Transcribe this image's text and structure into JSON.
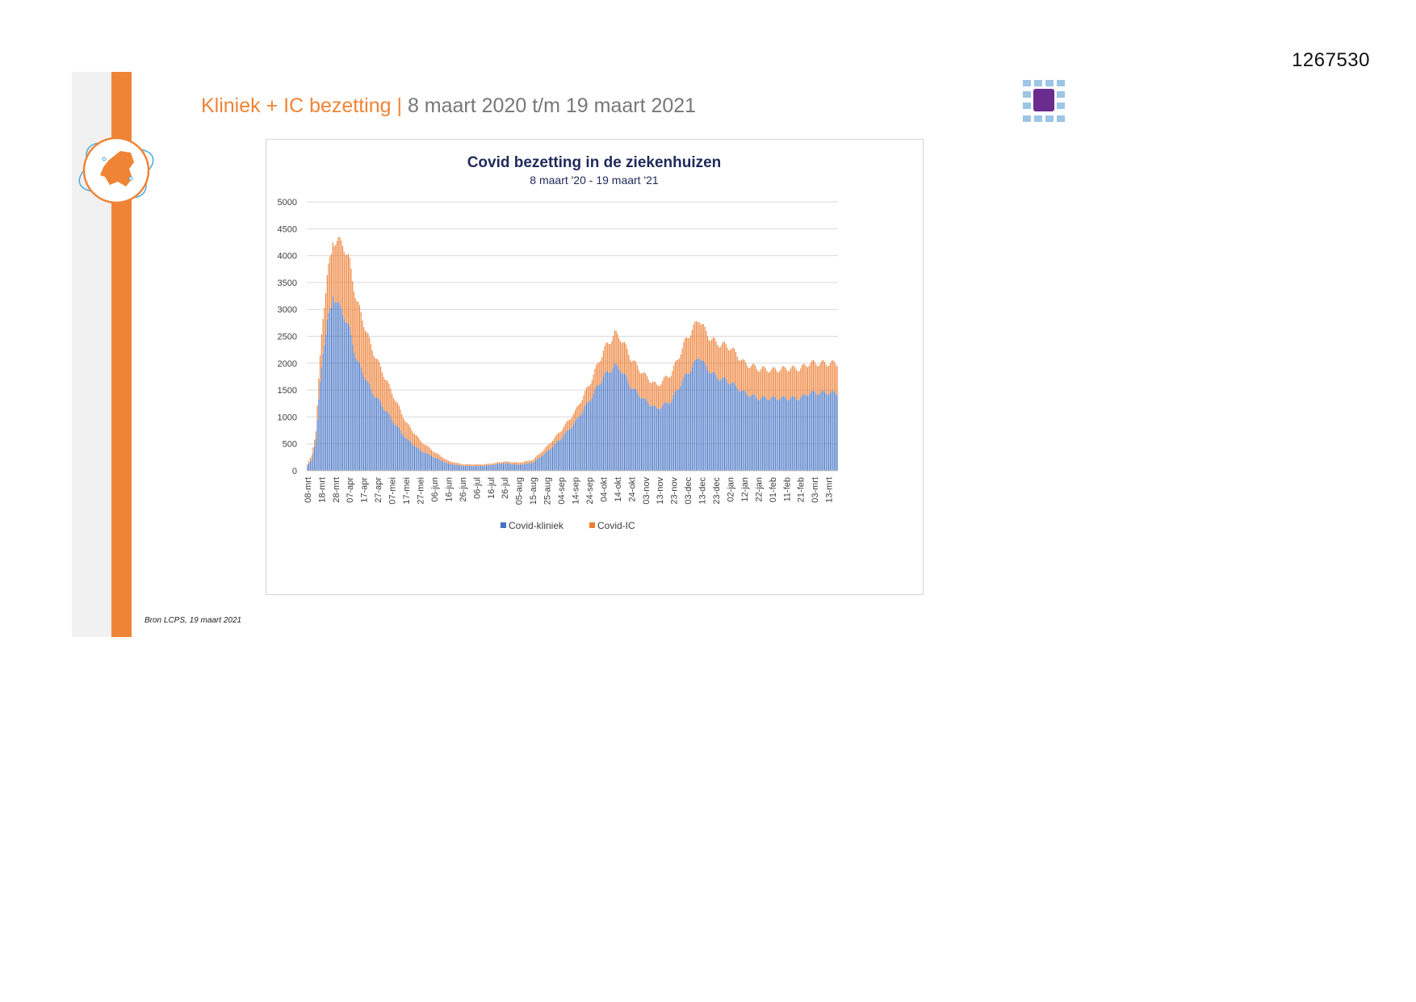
{
  "document": {
    "id_number": "1267530"
  },
  "slide": {
    "title_accent": "Kliniek + IC bezetting",
    "title_separator": " | ",
    "title_rest": "8 maart 2020 t/m 19 maart 2021",
    "source": "Bron LCPS, 19 maart 2021"
  },
  "colors": {
    "orange": "#f08436",
    "kliniek": "#4472c4",
    "ic": "#ed7d31",
    "title": "#1f2a5a"
  },
  "chart_data": {
    "type": "bar",
    "stacked": true,
    "title": "Covid bezetting in de ziekenhuizen",
    "subtitle": "8 maart '20 - 19 maart '21",
    "ylim": [
      0,
      5000
    ],
    "yticks": [
      0,
      500,
      1000,
      1500,
      2000,
      2500,
      3000,
      3500,
      4000,
      4500,
      5000
    ],
    "grid": true,
    "legend_position": "bottom",
    "x_tick_labels": [
      "08-mrt",
      "18-mrt",
      "28-mrt",
      "07-apr",
      "17-apr",
      "27-apr",
      "07-mei",
      "17-mei",
      "27-mei",
      "06-jun",
      "16-jun",
      "26-jun",
      "06-jul",
      "16-jul",
      "26-jul",
      "05-aug",
      "15-aug",
      "25-aug",
      "04-sep",
      "14-sep",
      "24-sep",
      "04-okt",
      "14-okt",
      "24-okt",
      "03-nov",
      "13-nov",
      "23-nov",
      "03-dec",
      "13-dec",
      "23-dec",
      "02-jan",
      "12-jan",
      "22-jan",
      "01-feb",
      "11-feb",
      "21-feb",
      "03-mrt",
      "13-mrt"
    ],
    "x_tick_every_days": 10,
    "start_date": "08-mrt-2020",
    "end_date": "19-mrt-2021",
    "series": [
      {
        "name": "Covid-kliniek",
        "color": "#4472c4",
        "anchors_day_value": [
          [
            0,
            100
          ],
          [
            3,
            200
          ],
          [
            6,
            600
          ],
          [
            8,
            1300
          ],
          [
            11,
            2200
          ],
          [
            14,
            2800
          ],
          [
            17,
            3000
          ],
          [
            18,
            3280
          ],
          [
            20,
            3200
          ],
          [
            23,
            3000
          ],
          [
            26,
            2900
          ],
          [
            30,
            2600
          ],
          [
            35,
            2050
          ],
          [
            40,
            1800
          ],
          [
            45,
            1500
          ],
          [
            52,
            1250
          ],
          [
            60,
            950
          ],
          [
            70,
            600
          ],
          [
            80,
            380
          ],
          [
            90,
            250
          ],
          [
            100,
            130
          ],
          [
            110,
            90
          ],
          [
            125,
            90
          ],
          [
            140,
            140
          ],
          [
            150,
            110
          ],
          [
            160,
            150
          ],
          [
            170,
            350
          ],
          [
            180,
            600
          ],
          [
            190,
            900
          ],
          [
            200,
            1300
          ],
          [
            210,
            1750
          ],
          [
            218,
            1950
          ],
          [
            222,
            1900
          ],
          [
            230,
            1550
          ],
          [
            240,
            1300
          ],
          [
            248,
            1150
          ],
          [
            258,
            1300
          ],
          [
            268,
            1750
          ],
          [
            275,
            2000
          ],
          [
            278,
            2150
          ],
          [
            282,
            1950
          ],
          [
            290,
            1750
          ],
          [
            300,
            1650
          ],
          [
            310,
            1450
          ],
          [
            320,
            1350
          ],
          [
            330,
            1350
          ],
          [
            340,
            1350
          ],
          [
            350,
            1350
          ],
          [
            356,
            1450
          ]
        ]
      },
      {
        "name": "Covid-IC",
        "color": "#ed7d31",
        "anchors_day_value": [
          [
            0,
            20
          ],
          [
            6,
            150
          ],
          [
            10,
            600
          ],
          [
            15,
            900
          ],
          [
            20,
            1100
          ],
          [
            25,
            1300
          ],
          [
            30,
            1250
          ],
          [
            40,
            950
          ],
          [
            50,
            700
          ],
          [
            60,
            500
          ],
          [
            70,
            300
          ],
          [
            80,
            180
          ],
          [
            90,
            100
          ],
          [
            100,
            50
          ],
          [
            110,
            30
          ],
          [
            130,
            25
          ],
          [
            150,
            40
          ],
          [
            160,
            50
          ],
          [
            170,
            100
          ],
          [
            180,
            150
          ],
          [
            190,
            200
          ],
          [
            200,
            300
          ],
          [
            210,
            480
          ],
          [
            218,
            600
          ],
          [
            225,
            570
          ],
          [
            235,
            480
          ],
          [
            248,
            430
          ],
          [
            260,
            520
          ],
          [
            270,
            680
          ],
          [
            278,
            700
          ],
          [
            285,
            620
          ],
          [
            300,
            650
          ],
          [
            310,
            550
          ],
          [
            320,
            550
          ],
          [
            330,
            520
          ],
          [
            340,
            550
          ],
          [
            356,
            550
          ]
        ]
      }
    ]
  }
}
